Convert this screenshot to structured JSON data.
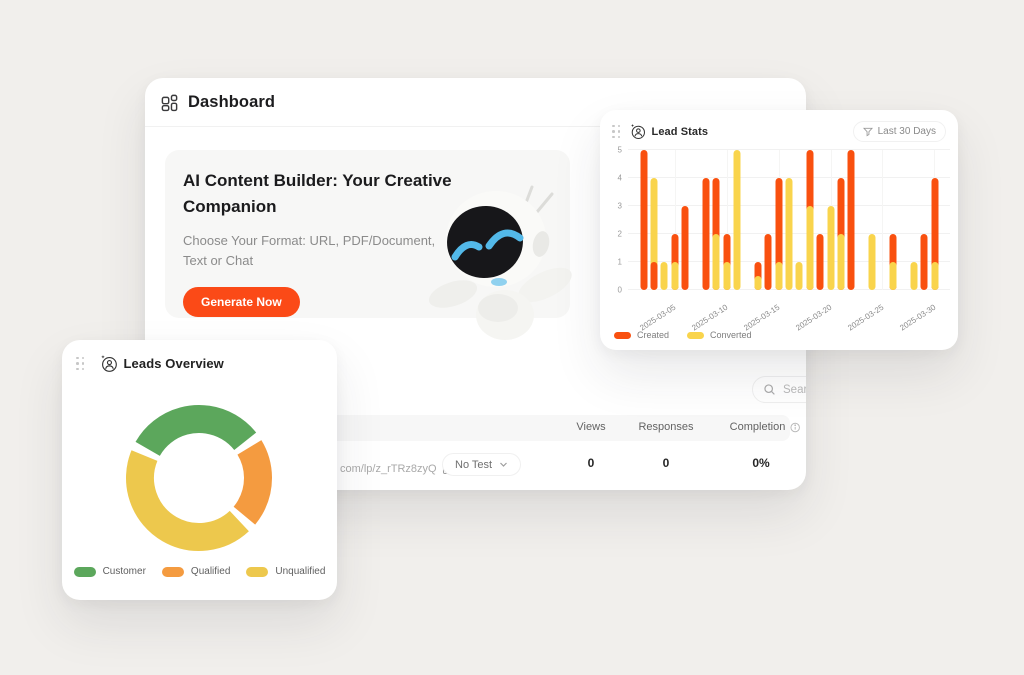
{
  "page": {
    "background": "#F1EFEC"
  },
  "dashboard": {
    "title": "Dashboard",
    "banner": {
      "title": "AI Content Builder: Your Creative Companion",
      "subtitle": "Choose Your Format: URL, PDF/Document, Text or Chat",
      "cta_label": "Generate Now",
      "cta_color": "#FB4A17"
    },
    "search": {
      "placeholder": "Sear"
    },
    "table": {
      "columns": [
        "Views",
        "Responses",
        "Completion"
      ],
      "row": {
        "url": "com/lp/z_rTRz8zyQ",
        "test_selector": "No Test",
        "views": "0",
        "responses": "0",
        "completion": "0%"
      }
    }
  },
  "lead_stats": {
    "title": "Lead Stats",
    "filter_label": "Last 30 Days"
  },
  "leads_overview": {
    "title": "Leads Overview"
  },
  "chart_data": [
    {
      "type": "bar",
      "title": "Lead Stats",
      "xlabel": "",
      "ylabel": "",
      "ylim": [
        0,
        5
      ],
      "y_ticks": [
        0,
        1,
        2,
        3,
        4,
        5
      ],
      "x_ticks": [
        "2025-03-05",
        "2025-03-10",
        "2025-03-15",
        "2025-03-20",
        "2025-03-25",
        "2025-03-30"
      ],
      "grid": true,
      "legend_position": "bottom",
      "series": [
        {
          "name": "Created",
          "color": "#F9500F"
        },
        {
          "name": "Converted",
          "color": "#F9D44C"
        }
      ],
      "days": [
        {
          "date": "2025-03-01",
          "created": 0,
          "converted": 0
        },
        {
          "date": "2025-03-02",
          "created": 5,
          "converted": 0
        },
        {
          "date": "2025-03-03",
          "created": 1,
          "converted": 4
        },
        {
          "date": "2025-03-04",
          "created": 0,
          "converted": 1
        },
        {
          "date": "2025-03-05",
          "created": 2,
          "converted": 1
        },
        {
          "date": "2025-03-06",
          "created": 3,
          "converted": 0
        },
        {
          "date": "2025-03-07",
          "created": 0,
          "converted": 0
        },
        {
          "date": "2025-03-08",
          "created": 4,
          "converted": 0
        },
        {
          "date": "2025-03-09",
          "created": 4,
          "converted": 2
        },
        {
          "date": "2025-03-10",
          "created": 2,
          "converted": 1
        },
        {
          "date": "2025-03-11",
          "created": 0,
          "converted": 5
        },
        {
          "date": "2025-03-12",
          "created": 0,
          "converted": 0
        },
        {
          "date": "2025-03-13",
          "created": 1,
          "converted": 0.5
        },
        {
          "date": "2025-03-14",
          "created": 2,
          "converted": 0
        },
        {
          "date": "2025-03-15",
          "created": 4,
          "converted": 1
        },
        {
          "date": "2025-03-16",
          "created": 0,
          "converted": 4
        },
        {
          "date": "2025-03-17",
          "created": 0,
          "converted": 1
        },
        {
          "date": "2025-03-18",
          "created": 5,
          "converted": 3
        },
        {
          "date": "2025-03-19",
          "created": 2,
          "converted": 0
        },
        {
          "date": "2025-03-20",
          "created": 0,
          "converted": 3
        },
        {
          "date": "2025-03-21",
          "created": 4,
          "converted": 2
        },
        {
          "date": "2025-03-22",
          "created": 5,
          "converted": 0
        },
        {
          "date": "2025-03-23",
          "created": 0,
          "converted": 0
        },
        {
          "date": "2025-03-24",
          "created": 0,
          "converted": 2
        },
        {
          "date": "2025-03-25",
          "created": 0,
          "converted": 0
        },
        {
          "date": "2025-03-26",
          "created": 2,
          "converted": 1
        },
        {
          "date": "2025-03-27",
          "created": 0,
          "converted": 0
        },
        {
          "date": "2025-03-28",
          "created": 0,
          "converted": 1
        },
        {
          "date": "2025-03-29",
          "created": 2,
          "converted": 0
        },
        {
          "date": "2025-03-30",
          "created": 4,
          "converted": 1
        },
        {
          "date": "2025-03-31",
          "created": 0,
          "converted": 0
        }
      ]
    },
    {
      "type": "pie",
      "subtype": "donut",
      "title": "Leads Overview",
      "labels": [
        "Customer",
        "Qualified",
        "Unqualified"
      ],
      "values": [
        33,
        21,
        46
      ],
      "colors": [
        "#5CA75C",
        "#F49B40",
        "#EDC84D"
      ],
      "start_angle_deg": 210,
      "gap_percent": 2,
      "legend_position": "bottom"
    }
  ]
}
